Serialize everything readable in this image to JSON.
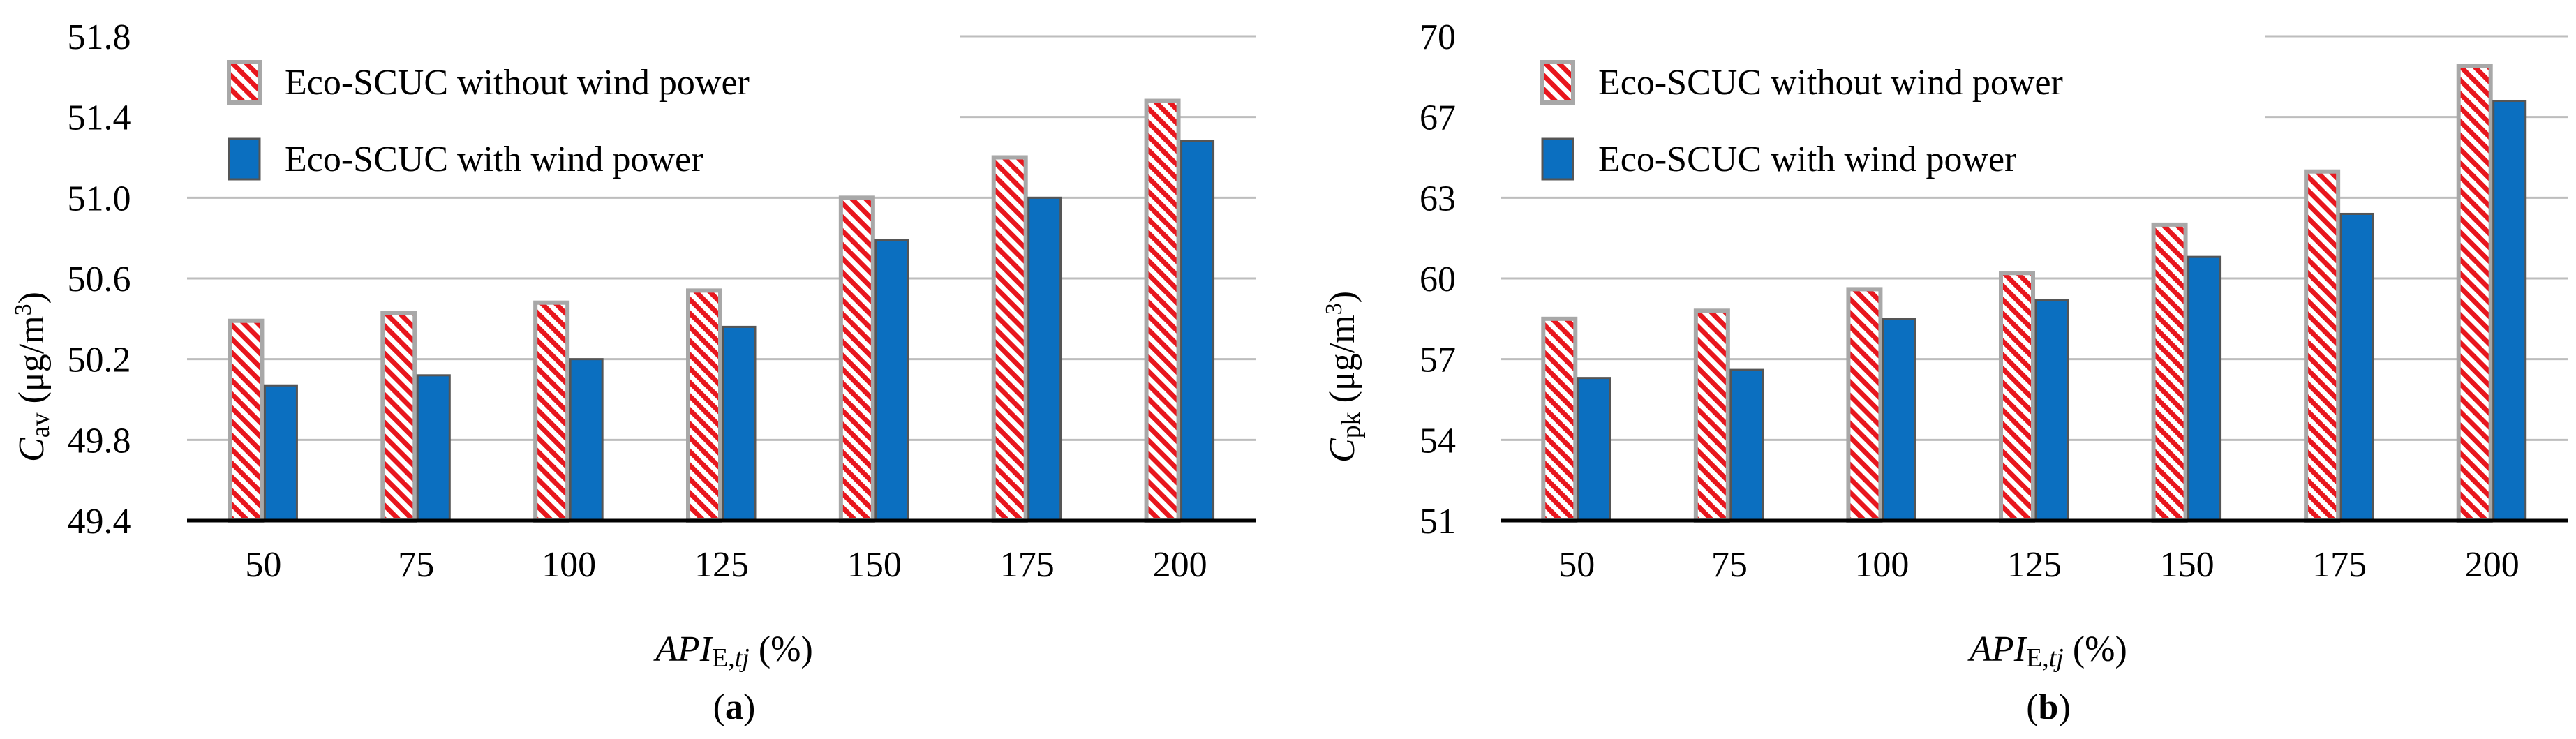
{
  "colors": {
    "without_wind_stripe": "#e8161d",
    "without_wind_border": "#a8a8a8",
    "with_wind_fill": "#0b6fc0",
    "with_wind_border": "#555555",
    "grid": "#bdbdbd",
    "axis": "#000000"
  },
  "chart_data": [
    {
      "type": "bar",
      "panel_label": "a",
      "categories": [
        "50",
        "75",
        "100",
        "125",
        "150",
        "175",
        "200"
      ],
      "series": [
        {
          "name": "Eco-SCUC without wind power",
          "values": [
            50.39,
            50.43,
            50.48,
            50.54,
            51.0,
            51.2,
            51.48
          ]
        },
        {
          "name": "Eco-SCUC with wind power",
          "values": [
            50.07,
            50.12,
            50.2,
            50.36,
            50.79,
            51.0,
            51.28
          ]
        }
      ],
      "ylabel_main": "C",
      "ylabel_sub": "av",
      "ylabel_unit": "(μg/m",
      "ylabel_sup": "3",
      "ylabel_close": ")",
      "xlabel_main": "API",
      "xlabel_sub1": "E,",
      "xlabel_sub2": "tj",
      "xlabel_unit": "(%)",
      "ylim": [
        49.4,
        51.8
      ],
      "yticks": [
        "49.4",
        "49.8",
        "50.2",
        "50.6",
        "51.0",
        "51.4",
        "51.8"
      ],
      "ytick_values": [
        49.4,
        49.8,
        50.2,
        50.6,
        51.0,
        51.4,
        51.8
      ],
      "legend_position": "top-left",
      "grid": true
    },
    {
      "type": "bar",
      "panel_label": "b",
      "categories": [
        "50",
        "75",
        "100",
        "125",
        "150",
        "175",
        "200"
      ],
      "series": [
        {
          "name": "Eco-SCUC without wind power",
          "values": [
            58.5,
            58.8,
            59.6,
            60.2,
            62.0,
            64.3,
            68.9
          ]
        },
        {
          "name": "Eco-SCUC with wind power",
          "values": [
            56.3,
            56.6,
            58.5,
            59.2,
            60.8,
            62.4,
            67.6
          ]
        }
      ],
      "ylabel_main": "C",
      "ylabel_sub": "pk",
      "ylabel_unit": "(μg/m",
      "ylabel_sup": "3",
      "ylabel_close": ")",
      "xlabel_main": "API",
      "xlabel_sub1": "E,",
      "xlabel_sub2": "tj",
      "xlabel_unit": "(%)",
      "ylim": [
        51,
        70
      ],
      "yticks": [
        "51",
        "54",
        "57",
        "60",
        "63",
        "67",
        "70"
      ],
      "ytick_values": [
        51,
        54,
        57,
        60,
        63,
        67,
        70
      ],
      "legend_position": "top-left",
      "grid": true
    }
  ]
}
